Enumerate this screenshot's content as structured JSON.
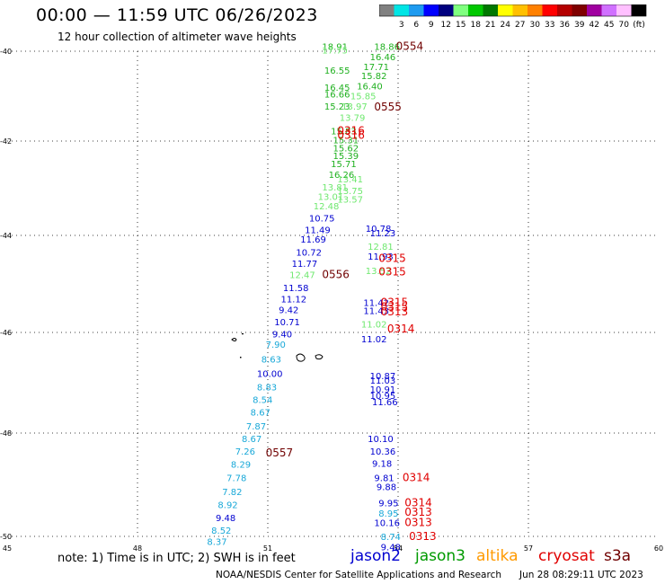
{
  "header": {
    "title": "00:00 — 11:59 UTC 06/26/2023",
    "subtitle": "12 hour collection of altimeter wave heights"
  },
  "colorbar": {
    "unit": "(ft)",
    "bins": [
      {
        "label": "",
        "color": "#808080"
      },
      {
        "label": "3",
        "color": "#00e5e5"
      },
      {
        "label": "6",
        "color": "#1e9bf0"
      },
      {
        "label": "9",
        "color": "#0000ff"
      },
      {
        "label": "12",
        "color": "#00007f"
      },
      {
        "label": "15",
        "color": "#7fff7f"
      },
      {
        "label": "18",
        "color": "#00c800"
      },
      {
        "label": "21",
        "color": "#007800"
      },
      {
        "label": "24",
        "color": "#ffff00"
      },
      {
        "label": "27",
        "color": "#ffc000"
      },
      {
        "label": "30",
        "color": "#ff8000"
      },
      {
        "label": "33",
        "color": "#ff0000"
      },
      {
        "label": "36",
        "color": "#b40000"
      },
      {
        "label": "39",
        "color": "#7f0000"
      },
      {
        "label": "42",
        "color": "#a000a0"
      },
      {
        "label": "45",
        "color": "#d070ff"
      },
      {
        "label": "70",
        "color": "#ffc0ff"
      },
      {
        "label": "",
        "color": "#000000"
      }
    ]
  },
  "map": {
    "lat_labels": [
      "-40",
      "-42",
      "-44",
      "-46",
      "-48",
      "-50"
    ],
    "lon_labels": [
      "45",
      "48",
      "51",
      "54",
      "57",
      "60"
    ],
    "lat_range": [
      -50,
      -40
    ],
    "lon_range": [
      45,
      60
    ]
  },
  "colors": {
    "light_green": "#6fe86f",
    "green": "#1fb01f",
    "blue": "#0000d0",
    "cyan": "#18a8d8",
    "red": "#e00000",
    "maroon": "#700000"
  },
  "observations": [
    {
      "text": "18.91",
      "lon": 52.25,
      "lat": -39.97,
      "c": "green"
    },
    {
      "text": "17.75",
      "lon": 52.25,
      "lat": -40.05,
      "c": "light_green"
    },
    {
      "text": "18.86",
      "lon": 53.45,
      "lat": -39.97,
      "c": "green"
    },
    {
      "text": "16.46",
      "lon": 53.35,
      "lat": -40.2,
      "c": "green"
    },
    {
      "text": "17.71",
      "lon": 53.2,
      "lat": -40.42,
      "c": "green"
    },
    {
      "text": "15.82",
      "lon": 53.15,
      "lat": -40.62,
      "c": "green"
    },
    {
      "text": "16.55",
      "lon": 52.3,
      "lat": -40.5,
      "c": "green"
    },
    {
      "text": "16.40",
      "lon": 53.05,
      "lat": -40.85,
      "c": "green"
    },
    {
      "text": "16.45",
      "lon": 52.3,
      "lat": -40.88,
      "c": "green"
    },
    {
      "text": "16.66",
      "lon": 52.3,
      "lat": -41.03,
      "c": "green"
    },
    {
      "text": "15.85",
      "lon": 52.9,
      "lat": -41.07,
      "c": "light_green"
    },
    {
      "text": "15.23",
      "lon": 52.3,
      "lat": -41.3,
      "c": "green"
    },
    {
      "text": "13.97",
      "lon": 52.7,
      "lat": -41.3,
      "c": "light_green"
    },
    {
      "text": "13.79",
      "lon": 52.65,
      "lat": -41.55,
      "c": "light_green"
    },
    {
      "text": "15.83",
      "lon": 52.45,
      "lat": -41.85,
      "c": "green"
    },
    {
      "text": "15.31",
      "lon": 52.5,
      "lat": -42.05,
      "c": "green"
    },
    {
      "text": "15.62",
      "lon": 52.5,
      "lat": -42.22,
      "c": "green"
    },
    {
      "text": "15.39",
      "lon": 52.5,
      "lat": -42.38,
      "c": "green"
    },
    {
      "text": "15.71",
      "lon": 52.45,
      "lat": -42.55,
      "c": "green"
    },
    {
      "text": "16.26",
      "lon": 52.4,
      "lat": -42.78,
      "c": "green"
    },
    {
      "text": "13.41",
      "lon": 52.6,
      "lat": -42.88,
      "c": "light_green"
    },
    {
      "text": "13.81",
      "lon": 52.25,
      "lat": -43.05,
      "c": "light_green"
    },
    {
      "text": "13.75",
      "lon": 52.6,
      "lat": -43.12,
      "c": "light_green"
    },
    {
      "text": "13.01",
      "lon": 52.15,
      "lat": -43.25,
      "c": "light_green"
    },
    {
      "text": "13.57",
      "lon": 52.6,
      "lat": -43.3,
      "c": "light_green"
    },
    {
      "text": "12.48",
      "lon": 52.05,
      "lat": -43.45,
      "c": "light_green"
    },
    {
      "text": "10.75",
      "lon": 51.95,
      "lat": -43.7,
      "c": "blue"
    },
    {
      "text": "11.49",
      "lon": 51.85,
      "lat": -43.95,
      "c": "blue"
    },
    {
      "text": "10.78",
      "lon": 53.25,
      "lat": -43.92,
      "c": "blue"
    },
    {
      "text": "11.23",
      "lon": 53.35,
      "lat": -44.02,
      "c": "blue"
    },
    {
      "text": "11.69",
      "lon": 51.75,
      "lat": -44.15,
      "c": "blue"
    },
    {
      "text": "12.81",
      "lon": 53.3,
      "lat": -44.3,
      "c": "light_green"
    },
    {
      "text": "10.72",
      "lon": 51.65,
      "lat": -44.42,
      "c": "blue"
    },
    {
      "text": "11.93",
      "lon": 53.3,
      "lat": -44.5,
      "c": "blue"
    },
    {
      "text": "11.77",
      "lon": 51.55,
      "lat": -44.65,
      "c": "blue"
    },
    {
      "text": "13.52",
      "lon": 53.25,
      "lat": -44.8,
      "c": "light_green"
    },
    {
      "text": "12.47",
      "lon": 51.5,
      "lat": -44.88,
      "c": "light_green"
    },
    {
      "text": "11.58",
      "lon": 51.35,
      "lat": -45.15,
      "c": "blue"
    },
    {
      "text": "11.12",
      "lon": 51.3,
      "lat": -45.38,
      "c": "blue"
    },
    {
      "text": "11.42",
      "lon": 53.2,
      "lat": -45.45,
      "c": "blue"
    },
    {
      "text": "9.42",
      "lon": 51.25,
      "lat": -45.6,
      "c": "blue"
    },
    {
      "text": "11.43",
      "lon": 53.2,
      "lat": -45.62,
      "c": "blue"
    },
    {
      "text": "10.71",
      "lon": 51.15,
      "lat": -45.85,
      "c": "blue"
    },
    {
      "text": "11.02",
      "lon": 53.15,
      "lat": -45.9,
      "c": "light_green"
    },
    {
      "text": "9.40",
      "lon": 51.1,
      "lat": -46.1,
      "c": "blue"
    },
    {
      "text": "11.02",
      "lon": 53.15,
      "lat": -46.2,
      "c": "blue"
    },
    {
      "text": "7.90",
      "lon": 50.95,
      "lat": -46.3,
      "c": "cyan"
    },
    {
      "text": "8.63",
      "lon": 50.85,
      "lat": -46.6,
      "c": "cyan"
    },
    {
      "text": "10.00",
      "lon": 50.75,
      "lat": -46.88,
      "c": "blue"
    },
    {
      "text": "10.87",
      "lon": 53.35,
      "lat": -46.93,
      "c": "blue"
    },
    {
      "text": "11.03",
      "lon": 53.35,
      "lat": -47.02,
      "c": "blue"
    },
    {
      "text": "8.83",
      "lon": 50.75,
      "lat": -47.15,
      "c": "cyan"
    },
    {
      "text": "10.91",
      "lon": 53.35,
      "lat": -47.2,
      "c": "blue"
    },
    {
      "text": "10.95",
      "lon": 53.35,
      "lat": -47.32,
      "c": "blue"
    },
    {
      "text": "8.54",
      "lon": 50.65,
      "lat": -47.4,
      "c": "cyan"
    },
    {
      "text": "11.66",
      "lon": 53.4,
      "lat": -47.45,
      "c": "blue"
    },
    {
      "text": "8.67",
      "lon": 50.6,
      "lat": -47.65,
      "c": "cyan"
    },
    {
      "text": "7.87",
      "lon": 50.5,
      "lat": -47.93,
      "c": "cyan"
    },
    {
      "text": "8.67",
      "lon": 50.4,
      "lat": -48.17,
      "c": "cyan"
    },
    {
      "text": "10.10",
      "lon": 53.3,
      "lat": -48.17,
      "c": "blue"
    },
    {
      "text": "7.26",
      "lon": 50.25,
      "lat": -48.42,
      "c": "cyan"
    },
    {
      "text": "10.36",
      "lon": 53.35,
      "lat": -48.42,
      "c": "blue"
    },
    {
      "text": "8.29",
      "lon": 50.15,
      "lat": -48.67,
      "c": "cyan"
    },
    {
      "text": "9.18",
      "lon": 53.4,
      "lat": -48.65,
      "c": "blue"
    },
    {
      "text": "7.78",
      "lon": 50.05,
      "lat": -48.93,
      "c": "cyan"
    },
    {
      "text": "9.81",
      "lon": 53.45,
      "lat": -48.93,
      "c": "blue"
    },
    {
      "text": "9.88",
      "lon": 53.5,
      "lat": -49.1,
      "c": "blue"
    },
    {
      "text": "7.82",
      "lon": 49.95,
      "lat": -49.2,
      "c": "cyan"
    },
    {
      "text": "8.92",
      "lon": 49.85,
      "lat": -49.45,
      "c": "cyan"
    },
    {
      "text": "9.95",
      "lon": 53.55,
      "lat": -49.42,
      "c": "blue"
    },
    {
      "text": "9.48",
      "lon": 49.8,
      "lat": -49.7,
      "c": "blue"
    },
    {
      "text": "8.95",
      "lon": 53.55,
      "lat": -49.62,
      "c": "cyan"
    },
    {
      "text": "10.16",
      "lon": 53.45,
      "lat": -49.8,
      "c": "blue"
    },
    {
      "text": "8.52",
      "lon": 49.7,
      "lat": -49.95,
      "c": "cyan"
    },
    {
      "text": "8.74",
      "lon": 53.6,
      "lat": -50.07,
      "c": "cyan"
    },
    {
      "text": "8.37",
      "lon": 49.6,
      "lat": -50.17,
      "c": "cyan"
    },
    {
      "text": "9.48",
      "lon": 53.6,
      "lat": -50.28,
      "c": "blue"
    }
  ],
  "time_labels": [
    {
      "text": "0554",
      "lon": 53.95,
      "lat": -39.97,
      "c": "maroon"
    },
    {
      "text": "0555",
      "lon": 53.45,
      "lat": -41.32,
      "c": "maroon"
    },
    {
      "text": "0316",
      "lon": 52.6,
      "lat": -41.85,
      "c": "red"
    },
    {
      "text": "0316",
      "lon": 52.6,
      "lat": -41.95,
      "c": "red"
    },
    {
      "text": "0315",
      "lon": 53.55,
      "lat": -44.55,
      "c": "red"
    },
    {
      "text": "0315",
      "lon": 53.55,
      "lat": -44.82,
      "c": "red"
    },
    {
      "text": "0556",
      "lon": 52.25,
      "lat": -44.88,
      "c": "maroon"
    },
    {
      "text": "0315",
      "lon": 53.6,
      "lat": -45.45,
      "c": "red"
    },
    {
      "text": "0315",
      "lon": 53.6,
      "lat": -45.55,
      "c": "red"
    },
    {
      "text": "0313",
      "lon": 53.6,
      "lat": -45.65,
      "c": "red"
    },
    {
      "text": "0314",
      "lon": 53.75,
      "lat": -46.0,
      "c": "red"
    },
    {
      "text": "0557",
      "lon": 50.95,
      "lat": -48.45,
      "c": "maroon"
    },
    {
      "text": "0314",
      "lon": 54.1,
      "lat": -48.93,
      "c": "red"
    },
    {
      "text": "0314",
      "lon": 54.15,
      "lat": -49.42,
      "c": "red"
    },
    {
      "text": "0313",
      "lon": 54.15,
      "lat": -49.6,
      "c": "red"
    },
    {
      "text": "0313",
      "lon": 54.15,
      "lat": -49.8,
      "c": "red"
    },
    {
      "text": "0313",
      "lon": 54.25,
      "lat": -50.07,
      "c": "red"
    }
  ],
  "note": "note:  1) Time is in UTC;  2) SWH is in feet",
  "legend": [
    {
      "name": "jason2",
      "color": "#0000d0"
    },
    {
      "name": "jason3",
      "color": "#009a00"
    },
    {
      "name": "altika",
      "color": "#ff9a00"
    },
    {
      "name": "cryosat",
      "color": "#e00000"
    },
    {
      "name": "s3a",
      "color": "#700000"
    }
  ],
  "footer": {
    "source": "NOAA/NESDIS Center for Satellite Applications and Research",
    "timestamp": "Jun 28 08:29:11 UTC 2023"
  }
}
